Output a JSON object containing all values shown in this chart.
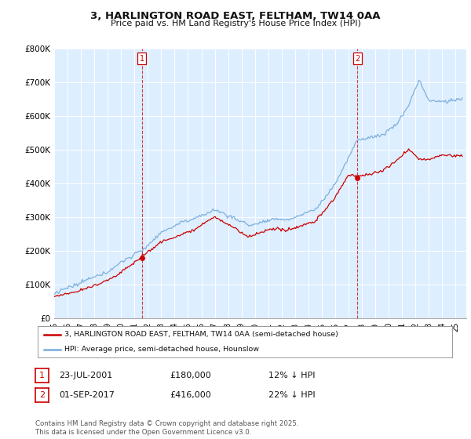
{
  "title": "3, HARLINGTON ROAD EAST, FELTHAM, TW14 0AA",
  "subtitle": "Price paid vs. HM Land Registry's House Price Index (HPI)",
  "legend_line1": "3, HARLINGTON ROAD EAST, FELTHAM, TW14 0AA (semi-detached house)",
  "legend_line2": "HPI: Average price, semi-detached house, Hounslow",
  "annotation1_date": "23-JUL-2001",
  "annotation1_price": "£180,000",
  "annotation1_hpi": "12% ↓ HPI",
  "annotation2_date": "01-SEP-2017",
  "annotation2_price": "£416,000",
  "annotation2_hpi": "22% ↓ HPI",
  "footer": "Contains HM Land Registry data © Crown copyright and database right 2025.\nThis data is licensed under the Open Government Licence v3.0.",
  "price_color": "#cc0000",
  "hpi_color": "#7aadda",
  "background_color": "#ffffff",
  "plot_bg_color": "#ddeeff",
  "grid_color": "#ffffff",
  "ylim": [
    0,
    800000
  ],
  "yticks": [
    0,
    100000,
    200000,
    300000,
    400000,
    500000,
    600000,
    700000,
    800000
  ],
  "ytick_labels": [
    "£0",
    "£100K",
    "£200K",
    "£300K",
    "£400K",
    "£500K",
    "£600K",
    "£700K",
    "£800K"
  ],
  "sale1_x": 2001.56,
  "sale1_y": 180000,
  "sale2_x": 2017.67,
  "sale2_y": 416000,
  "vline1_x": 2001.56,
  "vline2_x": 2017.67,
  "xmin": 1995.0,
  "xmax": 2025.8
}
